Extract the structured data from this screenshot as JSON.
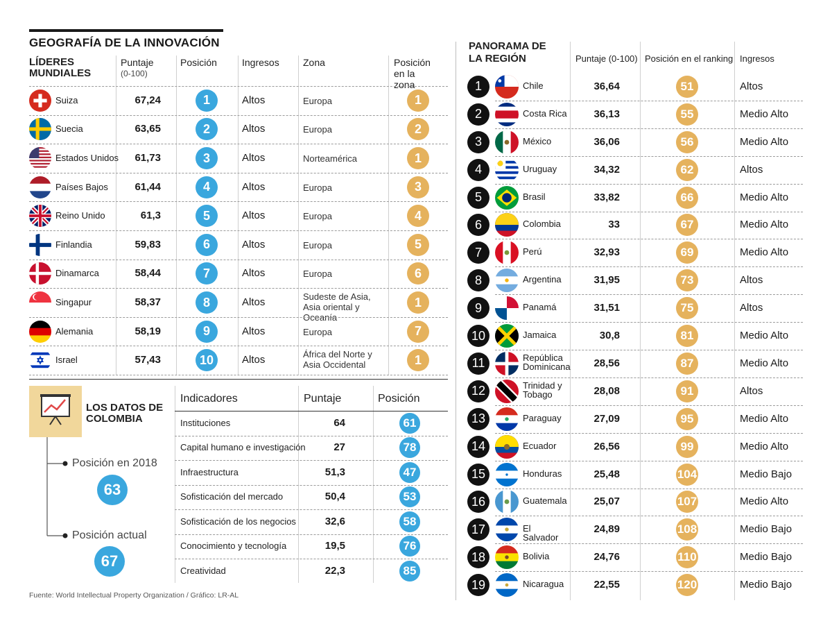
{
  "title": "GEOGRAFÍA DE LA INNOVACIÓN",
  "leaders": {
    "heading": "LÍDERES MUNDIALES",
    "col_score": "Puntaje",
    "col_score_sub": "(0-100)",
    "col_position": "Posición",
    "col_income": "Ingresos",
    "col_zone": "Zona",
    "col_zone_pos": "Posición en la zona",
    "rows": [
      {
        "country": "Suiza",
        "score": "67,24",
        "position": "1",
        "income": "Altos",
        "zone": "Europa",
        "zone_pos": "1",
        "flag": "ch"
      },
      {
        "country": "Suecia",
        "score": "63,65",
        "position": "2",
        "income": "Altos",
        "zone": "Europa",
        "zone_pos": "2",
        "flag": "se"
      },
      {
        "country": "Estados Unidos",
        "score": "61,73",
        "position": "3",
        "income": "Altos",
        "zone": "Norteamérica",
        "zone_pos": "1",
        "flag": "us"
      },
      {
        "country": "Países Bajos",
        "score": "61,44",
        "position": "4",
        "income": "Altos",
        "zone": "Europa",
        "zone_pos": "3",
        "flag": "nl"
      },
      {
        "country": "Reino Unido",
        "score": "61,3",
        "position": "5",
        "income": "Altos",
        "zone": "Europa",
        "zone_pos": "4",
        "flag": "gb"
      },
      {
        "country": "Finlandia",
        "score": "59,83",
        "position": "6",
        "income": "Altos",
        "zone": "Europa",
        "zone_pos": "5",
        "flag": "fi"
      },
      {
        "country": "Dinamarca",
        "score": "58,44",
        "position": "7",
        "income": "Altos",
        "zone": "Europa",
        "zone_pos": "6",
        "flag": "dk"
      },
      {
        "country": "Singapur",
        "score": "58,37",
        "position": "8",
        "income": "Altos",
        "zone": "Sudeste de Asia, Asia oriental y Oceanía",
        "zone_pos": "1",
        "flag": "sg"
      },
      {
        "country": "Alemania",
        "score": "58,19",
        "position": "9",
        "income": "Altos",
        "zone": "Europa",
        "zone_pos": "7",
        "flag": "de"
      },
      {
        "country": "Israel",
        "score": "57,43",
        "position": "10",
        "income": "Altos",
        "zone": "África del Norte y Asia Occidental",
        "zone_pos": "1",
        "flag": "il"
      }
    ]
  },
  "colombia": {
    "heading": "LOS DATOS DE COLOMBIA",
    "icon": "presentation-chart-icon",
    "pos2018_label": "Posición en 2018",
    "pos2018_value": "63",
    "current_label": "Posición actual",
    "current_value": "67",
    "col_indicator": "Indicadores",
    "col_score": "Puntaje",
    "col_position": "Posición",
    "indicators": [
      {
        "name": "Instituciones",
        "score": "64",
        "position": "61"
      },
      {
        "name": "Capital humano e investigación",
        "score": "27",
        "position": "78"
      },
      {
        "name": "Infraestructura",
        "score": "51,3",
        "position": "47"
      },
      {
        "name": "Sofisticación del mercado",
        "score": "50,4",
        "position": "53"
      },
      {
        "name": "Sofisticación de los negocios",
        "score": "32,6",
        "position": "58"
      },
      {
        "name": "Conocimiento y tecnología",
        "score": "19,5",
        "position": "76"
      },
      {
        "name": "Creatividad",
        "score": "22,3",
        "position": "85"
      }
    ]
  },
  "region": {
    "heading": "PANORAMA DE LA REGIÓN",
    "col_score": "Puntaje (0-100)",
    "col_rank": "Posición en el ranking",
    "col_income": "Ingresos",
    "rows": [
      {
        "n": "1",
        "country": "Chile",
        "score": "36,64",
        "rank": "51",
        "income": "Altos",
        "flag": "cl"
      },
      {
        "n": "2",
        "country": "Costa Rica",
        "score": "36,13",
        "rank": "55",
        "income": "Medio Alto",
        "flag": "cr"
      },
      {
        "n": "3",
        "country": "México",
        "score": "36,06",
        "rank": "56",
        "income": "Medio Alto",
        "flag": "mx"
      },
      {
        "n": "4",
        "country": "Uruguay",
        "score": "34,32",
        "rank": "62",
        "income": "Altos",
        "flag": "uy"
      },
      {
        "n": "5",
        "country": "Brasil",
        "score": "33,82",
        "rank": "66",
        "income": "Medio Alto",
        "flag": "br"
      },
      {
        "n": "6",
        "country": "Colombia",
        "score": "33",
        "rank": "67",
        "income": "Medio Alto",
        "flag": "co"
      },
      {
        "n": "7",
        "country": "Perú",
        "score": "32,93",
        "rank": "69",
        "income": "Medio Alto",
        "flag": "pe"
      },
      {
        "n": "8",
        "country": "Argentina",
        "score": "31,95",
        "rank": "73",
        "income": "Altos",
        "flag": "ar"
      },
      {
        "n": "9",
        "country": "Panamá",
        "score": "31,51",
        "rank": "75",
        "income": "Altos",
        "flag": "pa"
      },
      {
        "n": "10",
        "country": "Jamaica",
        "score": "30,8",
        "rank": "81",
        "income": "Medio Alto",
        "flag": "jm"
      },
      {
        "n": "11",
        "country": "República Dominicana",
        "score": "28,56",
        "rank": "87",
        "income": "Medio Alto",
        "flag": "do"
      },
      {
        "n": "12",
        "country": "Trinidad y Tobago",
        "score": "28,08",
        "rank": "91",
        "income": "Altos",
        "flag": "tt"
      },
      {
        "n": "13",
        "country": "Paraguay",
        "score": "27,09",
        "rank": "95",
        "income": "Medio Alto",
        "flag": "py"
      },
      {
        "n": "14",
        "country": "Ecuador",
        "score": "26,56",
        "rank": "99",
        "income": "Medio Alto",
        "flag": "ec"
      },
      {
        "n": "15",
        "country": "Honduras",
        "score": "25,48",
        "rank": "104",
        "income": "Medio Bajo",
        "flag": "hn"
      },
      {
        "n": "16",
        "country": "Guatemala",
        "score": "25,07",
        "rank": "107",
        "income": "Medio Alto",
        "flag": "gt"
      },
      {
        "n": "17",
        "country": "El Salvador",
        "score": "24,89",
        "rank": "108",
        "income": "Medio Bajo",
        "flag": "sv"
      },
      {
        "n": "18",
        "country": "Bolivia",
        "score": "24,76",
        "rank": "110",
        "income": "Medio Bajo",
        "flag": "bo"
      },
      {
        "n": "19",
        "country": "Nicaragua",
        "score": "22,55",
        "rank": "120",
        "income": "Medio Bajo",
        "flag": "ni"
      }
    ]
  },
  "source": "Fuente: World Intellectual Property Organization / Gráfico: LR-AL",
  "colors": {
    "blue": "#3aa7de",
    "gold": "#e5b25d",
    "black": "#111111",
    "icon_bg": "#f1d79b"
  },
  "chart_data": {
    "type": "table",
    "tables": [
      {
        "name": "LÍDERES MUNDIALES",
        "columns": [
          "",
          "Puntaje (0-100)",
          "Posición",
          "Ingresos",
          "Zona",
          "Posición en la zona"
        ]
      },
      {
        "name": "LOS DATOS DE COLOMBIA",
        "columns": [
          "Indicadores",
          "Puntaje",
          "Posición"
        ]
      },
      {
        "name": "PANORAMA DE LA REGIÓN",
        "columns": [
          "",
          "Puntaje (0-100)",
          "Posición en el ranking",
          "Ingresos"
        ]
      }
    ]
  }
}
